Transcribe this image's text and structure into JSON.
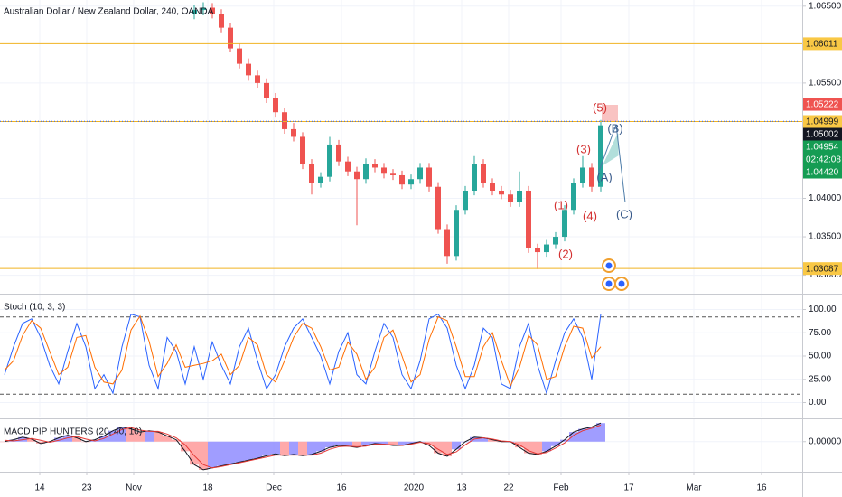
{
  "chart_data": [
    {
      "type": "candlestick",
      "title": "Australian Dollar / New Zealand Dollar, 240, OANDA",
      "open": [
        null,
        null,
        null,
        null,
        null,
        null,
        null,
        null,
        null,
        null,
        null,
        null,
        null,
        null,
        null,
        null,
        null,
        null,
        null,
        null,
        null,
        1.064,
        1.0645,
        1.0648,
        1.064,
        1.0622,
        1.0595,
        1.0575,
        1.056,
        1.055,
        1.053,
        1.0512,
        1.049,
        1.048,
        1.0445,
        1.042,
        1.0428,
        1.047,
        1.0448,
        1.0435,
        1.0425,
        1.0445,
        1.044,
        1.0432,
        1.043,
        1.0418,
        1.0425,
        1.044,
        1.0415,
        1.036,
        1.0325,
        1.0385,
        1.041,
        1.0445,
        1.042,
        1.041,
        1.0405,
        1.0395,
        1.041,
        1.0335,
        1.033,
        1.034,
        1.035,
        1.0385,
        1.042,
        1.044,
        1.0415
      ],
      "high": [
        null,
        null,
        null,
        null,
        null,
        null,
        null,
        null,
        null,
        null,
        null,
        null,
        null,
        null,
        null,
        null,
        null,
        null,
        null,
        null,
        null,
        1.0652,
        1.0655,
        1.0654,
        1.0646,
        1.0628,
        1.0601,
        1.0582,
        1.0566,
        1.0556,
        1.0537,
        1.0518,
        1.0498,
        1.0486,
        1.0451,
        1.0434,
        1.048,
        1.0476,
        1.0454,
        1.0441,
        1.0452,
        1.0451,
        1.0446,
        1.0438,
        1.0436,
        1.0431,
        1.0446,
        1.0446,
        1.0421,
        1.0366,
        1.0391,
        1.0416,
        1.0455,
        1.0451,
        1.0426,
        1.0416,
        1.0411,
        1.0435,
        1.0416,
        1.0341,
        1.0346,
        1.0356,
        1.0391,
        1.0426,
        1.0455,
        1.0446,
        1.0502
      ],
      "low": [
        null,
        null,
        null,
        null,
        null,
        null,
        null,
        null,
        null,
        null,
        null,
        null,
        null,
        null,
        null,
        null,
        null,
        null,
        null,
        null,
        null,
        1.0633,
        1.0638,
        1.0634,
        1.0616,
        1.059,
        1.0569,
        1.0553,
        1.0544,
        1.0524,
        1.0505,
        1.0484,
        1.0474,
        1.0438,
        1.0405,
        1.0414,
        1.0422,
        1.0442,
        1.0429,
        1.0365,
        1.0419,
        1.0434,
        1.0426,
        1.0424,
        1.0412,
        1.0412,
        1.0419,
        1.0409,
        1.0354,
        1.0315,
        1.0319,
        1.0379,
        1.0404,
        1.0414,
        1.0404,
        1.0399,
        1.0389,
        1.0389,
        1.0329,
        1.0308,
        1.0324,
        1.0334,
        1.0344,
        1.0379,
        1.0414,
        1.0409,
        1.0409
      ],
      "close": [
        null,
        null,
        null,
        null,
        null,
        null,
        null,
        null,
        null,
        null,
        null,
        null,
        null,
        null,
        null,
        null,
        null,
        null,
        null,
        null,
        null,
        1.0645,
        1.0648,
        1.064,
        1.0622,
        1.0595,
        1.0575,
        1.056,
        1.055,
        1.053,
        1.0512,
        1.049,
        1.048,
        1.0445,
        1.042,
        1.0428,
        1.047,
        1.0448,
        1.0435,
        1.0425,
        1.0445,
        1.044,
        1.0432,
        1.043,
        1.0418,
        1.0425,
        1.044,
        1.0415,
        1.036,
        1.0325,
        1.0385,
        1.041,
        1.0445,
        1.042,
        1.041,
        1.0405,
        1.0395,
        1.041,
        1.0335,
        1.033,
        1.034,
        1.035,
        1.0385,
        1.042,
        1.044,
        1.0415,
        1.0495
      ],
      "up_color": "#26a69a",
      "down_color": "#ef5350",
      "ylim": [
        1.0276,
        1.0658
      ],
      "yticks": [
        {
          "value": 1.065,
          "label": "1.06500"
        },
        {
          "value": 1.055,
          "label": "1.05500"
        },
        {
          "value": 1.04,
          "label": "1.04000"
        },
        {
          "value": 1.035,
          "label": "1.03500"
        },
        {
          "value": 1.03,
          "label": "1.03000"
        }
      ],
      "grid": true,
      "price_labels": [
        {
          "value": 1.06011,
          "color": "#f9c845",
          "text_color": "#131722",
          "line_color": "#f0b323"
        },
        {
          "value": 1.05222,
          "color": "#ef5350",
          "text_color": "#ffffff"
        },
        {
          "value": 1.04999,
          "color": "#f9c845",
          "text_color": "#131722",
          "line_color": "#f0b323"
        },
        {
          "value": 1.05002,
          "color": "#131722",
          "text_color": "#ffffff",
          "line_color": "#2962ff",
          "line_dash": true
        },
        {
          "value": 1.04954,
          "color": "#159c53",
          "text_color": "#ffffff",
          "countdown": "02:42:08"
        },
        {
          "value": 1.0442,
          "label": "1.04420",
          "color": "#159c53",
          "text_color": "#ffffff"
        },
        {
          "value": 1.03087,
          "color": "#f9c845",
          "text_color": "#131722",
          "line_color": "#f0b323"
        }
      ],
      "annotations": [
        {
          "text": "(5)",
          "color": "#d32f2f"
        },
        {
          "text": "(B)",
          "color": "#37598a"
        },
        {
          "text": "(3)",
          "color": "#d32f2f"
        },
        {
          "text": "(A)",
          "color": "#37598a"
        },
        {
          "text": "(1)",
          "color": "#d32f2f"
        },
        {
          "text": "(4)",
          "color": "#d32f2f"
        },
        {
          "text": "(C)",
          "color": "#37598a"
        },
        {
          "text": "(2)",
          "color": "#d32f2f"
        }
      ]
    },
    {
      "type": "line",
      "title": "Stoch (10, 3, 3)",
      "series": [
        {
          "name": "%K",
          "color": "#2962ff",
          "values": [
            30,
            60,
            85,
            90,
            70,
            40,
            20,
            55,
            85,
            60,
            15,
            30,
            10,
            60,
            95,
            92,
            40,
            15,
            70,
            55,
            20,
            60,
            25,
            65,
            40,
            20,
            60,
            80,
            45,
            15,
            30,
            60,
            80,
            90,
            70,
            50,
            20,
            55,
            75,
            30,
            20,
            55,
            85,
            70,
            30,
            15,
            45,
            90,
            95,
            80,
            40,
            15,
            40,
            80,
            70,
            20,
            15,
            60,
            85,
            40,
            10,
            45,
            75,
            90,
            70,
            25,
            95
          ]
        },
        {
          "name": "%D",
          "color": "#ff6d00",
          "values": [
            35,
            45,
            72,
            88,
            80,
            55,
            30,
            38,
            70,
            72,
            38,
            22,
            20,
            35,
            78,
            93,
            66,
            28,
            42,
            62,
            38,
            40,
            42,
            45,
            52,
            30,
            40,
            70,
            62,
            30,
            22,
            45,
            70,
            85,
            80,
            60,
            35,
            38,
            65,
            52,
            25,
            38,
            70,
            78,
            50,
            22,
            30,
            68,
            92,
            88,
            60,
            28,
            28,
            60,
            75,
            45,
            18,
            38,
            72,
            62,
            25,
            28,
            60,
            82,
            80,
            48,
            60
          ]
        }
      ],
      "bands": [
        92,
        9
      ],
      "band_color": "#555555",
      "ylim": [
        -16,
        116
      ],
      "yticks": [
        {
          "value": 100,
          "label": "100.00"
        },
        {
          "value": 75,
          "label": "75.00"
        },
        {
          "value": 50,
          "label": "50.00"
        },
        {
          "value": 25,
          "label": "25.00"
        },
        {
          "value": 0,
          "label": "0.00"
        }
      ],
      "grid": true
    },
    {
      "type": "line",
      "title": "MACD PIP HUNTERS (20, 40, 10)",
      "series": [
        {
          "name": "MACD",
          "color": "#131722",
          "values": [
            0,
            0.0003,
            0.0007,
            0.0004,
            -0.0003,
            0,
            0.0006,
            0.001,
            0.0006,
            0,
            0.0003,
            0.0009,
            0.0017,
            0.0023,
            0.002,
            0.0015,
            0.0017,
            0.0015,
            0.0009,
            0.0003,
            -0.0015,
            -0.0036,
            -0.0044,
            -0.0041,
            -0.0038,
            -0.0035,
            -0.0032,
            -0.0029,
            -0.0026,
            -0.0022,
            -0.0019,
            -0.0022,
            -0.002,
            -0.0022,
            -0.002,
            -0.0015,
            -0.0009,
            -0.0006,
            -0.0007,
            -0.0009,
            -0.0006,
            -0.0003,
            -0.0004,
            -0.0006,
            -0.0006,
            -0.0003,
            0,
            -0.0006,
            -0.0018,
            -0.0023,
            -0.0012,
            0,
            0.0007,
            0.0006,
            0.0003,
            0,
            0,
            -0.0009,
            -0.0018,
            -0.002,
            -0.0015,
            -0.0007,
            0.0003,
            0.0015,
            0.002,
            0.0023,
            0.0029
          ]
        },
        {
          "name": "Signal",
          "color": "#e53935",
          "values": [
            0.0002,
            0.0001,
            0.0003,
            0.0005,
            0.0002,
            -0.0001,
            0.0002,
            0.0006,
            0.0008,
            0.0004,
            0.0001,
            0.0005,
            0.0012,
            0.0019,
            0.0022,
            0.0018,
            0.0016,
            0.0016,
            0.0012,
            0.0006,
            -0.0005,
            -0.0022,
            -0.0036,
            -0.0041,
            -0.0039,
            -0.0036,
            -0.0033,
            -0.003,
            -0.0027,
            -0.0024,
            -0.0021,
            -0.0021,
            -0.0021,
            -0.0021,
            -0.0021,
            -0.0018,
            -0.0012,
            -0.0008,
            -0.0007,
            -0.0008,
            -0.0007,
            -0.0004,
            -0.0004,
            -0.0005,
            -0.0006,
            -0.0004,
            -0.0001,
            -0.0003,
            -0.0012,
            -0.002,
            -0.0016,
            -0.0005,
            0.0004,
            0.0006,
            0.0004,
            0.0001,
            0,
            -0.0005,
            -0.0014,
            -0.0019,
            -0.0017,
            -0.001,
            -0.0002,
            0.001,
            0.0017,
            0.0021,
            0.0026
          ]
        }
      ],
      "histogram": {
        "above": "#8f8cff",
        "below": "#ff9a9a"
      },
      "ylim": [
        -0.0047,
        0.0035
      ],
      "yticks": [
        {
          "value": 0,
          "label": "0.00000"
        }
      ],
      "grid": true,
      "xlim": [
        -0.5,
        88.3
      ],
      "xticks": [
        {
          "value": 3.9,
          "label": "14"
        },
        {
          "value": 9.1,
          "label": "23"
        },
        {
          "value": 14.3,
          "label": "Nov"
        },
        {
          "value": 22.5,
          "label": "18"
        },
        {
          "value": 29.8,
          "label": "Dec"
        },
        {
          "value": 37.3,
          "label": "16"
        },
        {
          "value": 45.3,
          "label": "2020"
        },
        {
          "value": 50.6,
          "label": "13"
        },
        {
          "value": 55.8,
          "label": "22"
        },
        {
          "value": 61.6,
          "label": "Feb"
        },
        {
          "value": 69.1,
          "label": "17"
        },
        {
          "value": 76.3,
          "label": "Mar"
        },
        {
          "value": 83.8,
          "label": "16"
        }
      ]
    }
  ]
}
